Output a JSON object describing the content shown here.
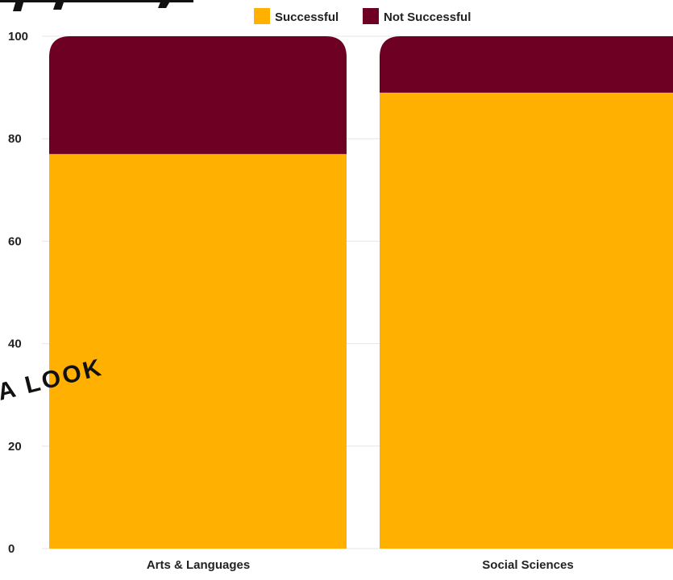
{
  "overlay": {
    "text": "A LOOK"
  },
  "chart_data": {
    "type": "bar",
    "stacked": true,
    "title": "",
    "xlabel": "",
    "ylabel": "",
    "categories": [
      "Arts & Languages",
      "Social Sciences"
    ],
    "series": [
      {
        "name": "Successful",
        "values": [
          77,
          89
        ],
        "color": "#FFB000"
      },
      {
        "name": "Not Successful",
        "values": [
          23,
          11
        ],
        "color": "#6E0023"
      }
    ],
    "ylim": [
      0,
      100
    ],
    "yticks": [
      "0",
      "20",
      "40",
      "60",
      "80",
      "100"
    ],
    "grid": true,
    "legend_position": "top"
  }
}
